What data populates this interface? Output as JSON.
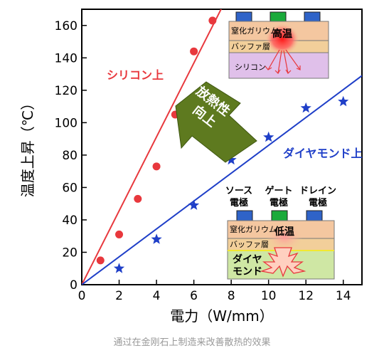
{
  "chart_data": {
    "type": "scatter",
    "xlabel": "電力（W/mm）",
    "ylabel": "温度上昇（℃）",
    "xlim": [
      0,
      15
    ],
    "ylim": [
      0,
      170
    ],
    "xticks": [
      0,
      2,
      4,
      6,
      8,
      10,
      12,
      14
    ],
    "yticks": [
      0,
      20,
      40,
      60,
      80,
      100,
      120,
      140,
      160
    ],
    "series": [
      {
        "name": "シリコン上",
        "marker": "circle",
        "color": "#e8383d",
        "x": [
          1,
          2,
          3,
          4,
          5,
          6,
          7
        ],
        "y": [
          15,
          31,
          53,
          73,
          105,
          144,
          163
        ],
        "fit": {
          "slope": 22.8,
          "intercept": 0
        }
      },
      {
        "name": "ダイヤモンド上",
        "marker": "star",
        "color": "#1f3fc8",
        "x": [
          2,
          4,
          6,
          8,
          10,
          12,
          14
        ],
        "y": [
          10,
          28,
          49,
          77,
          91,
          109,
          113
        ],
        "fit": {
          "slope": 8.6,
          "intercept": 0
        }
      }
    ],
    "annotations": {
      "arrow_text": [
        "放熱性",
        "向上"
      ],
      "top_device": {
        "layer1": "窒化ガリウム",
        "layer2": "バッファ層",
        "substrate": "シリコン",
        "hotspot": "高温"
      },
      "bottom_device": {
        "layer1": "窒化ガリウム",
        "layer2": "バッファ層",
        "substrate_lines": [
          "ダイヤ",
          "モンド"
        ],
        "hotspot": "低温"
      },
      "electrodes": [
        {
          "lines": [
            "ソース",
            "電極"
          ]
        },
        {
          "lines": [
            "ゲート",
            "電極"
          ]
        },
        {
          "lines": [
            "ドレイン",
            "電極"
          ]
        }
      ]
    }
  },
  "caption": "通过在金刚石上制造来改善散热的效果",
  "colors": {
    "red": "#e8383d",
    "blue": "#1f3fc8",
    "green_arrow": "#5e7a1f",
    "gan": "#f4c7a0",
    "silicon": "#e0c0ea",
    "diamond": "#cfe7a4",
    "electrode_blue": "#2f63c8",
    "electrode_green": "#1aaa3a"
  }
}
